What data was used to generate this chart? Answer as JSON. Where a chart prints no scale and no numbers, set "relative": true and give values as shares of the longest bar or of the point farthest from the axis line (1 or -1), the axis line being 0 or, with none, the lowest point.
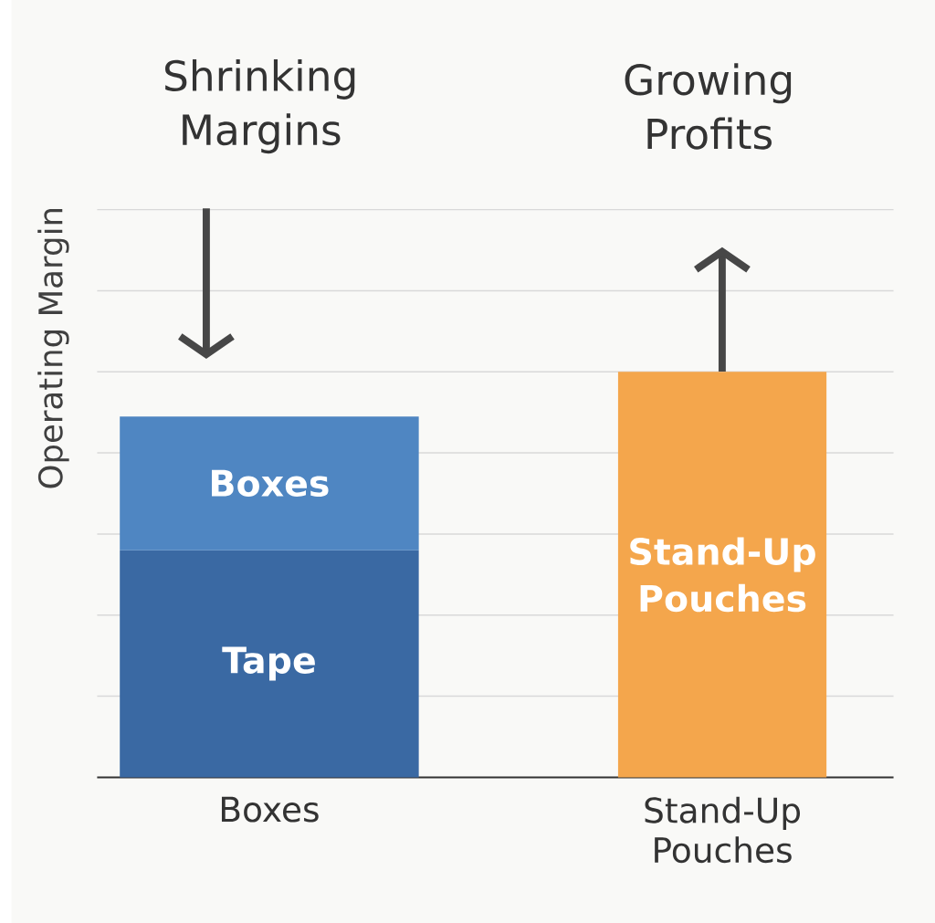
{
  "chart_data": {
    "type": "bar",
    "stacked": true,
    "relative": true,
    "ylabel": "Operating Margin",
    "grid": "y",
    "categories": [
      "Boxes",
      "Stand-Up Pouches"
    ],
    "series": [
      {
        "name": "Tape",
        "color": "#3a69a3",
        "values": [
          0.56,
          null
        ]
      },
      {
        "name": "Boxes",
        "color": "#4f86c2",
        "values": [
          0.33,
          null
        ]
      },
      {
        "name": "Stand-Up Pouches",
        "color": "#f4a64c",
        "values": [
          null,
          1
        ]
      }
    ],
    "annotations": [
      "Shrinking Margins",
      "Growing Profits"
    ]
  }
}
